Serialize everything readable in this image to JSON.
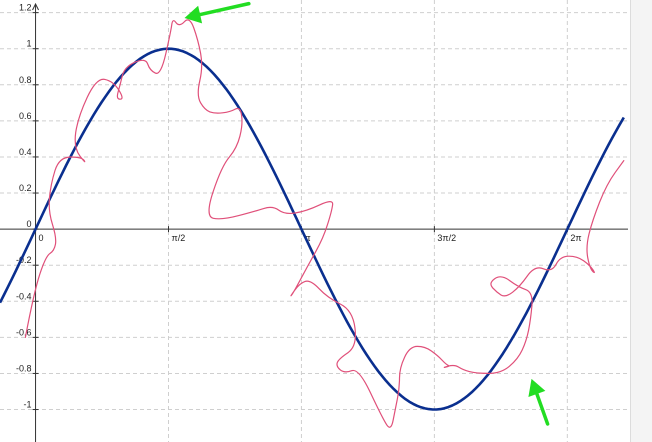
{
  "chart_data": {
    "type": "line",
    "title": "",
    "xlabel": "",
    "ylabel": "",
    "xlim": [
      -0.42,
      7.0
    ],
    "ylim": [
      -1.18,
      1.27
    ],
    "grid": true,
    "x_ticks": [
      {
        "value": 0,
        "label": "0"
      },
      {
        "value": 1.5708,
        "label": "π/2"
      },
      {
        "value": 3.1416,
        "label": "π"
      },
      {
        "value": 4.7124,
        "label": "3π/2"
      },
      {
        "value": 6.2832,
        "label": "2π"
      }
    ],
    "y_ticks": [
      {
        "value": 1.2,
        "label": "1.2"
      },
      {
        "value": 1,
        "label": "1"
      },
      {
        "value": 0.8,
        "label": "0.8"
      },
      {
        "value": 0.6,
        "label": "0.6"
      },
      {
        "value": 0.4,
        "label": "0.4"
      },
      {
        "value": 0.2,
        "label": "0.2"
      },
      {
        "value": 0,
        "label": "0"
      },
      {
        "value": -0.2,
        "label": "-0.2"
      },
      {
        "value": -0.4,
        "label": "-0.4"
      },
      {
        "value": -0.6,
        "label": "-0.6"
      },
      {
        "value": -0.8,
        "label": "-0.8"
      },
      {
        "value": -1,
        "label": "-1"
      }
    ],
    "series": [
      {
        "function": "sin",
        "color": "#0a2f8f",
        "x_range": [
          -0.42,
          6.95
        ],
        "samples": 160
      },
      {
        "style": "hand-drawn",
        "color": "#e0507a",
        "x": [
          -0.12,
          -0.02,
          0.12,
          0.22,
          0.25,
          0.15,
          0.18,
          0.28,
          0.55,
          0.6,
          0.45,
          0.5,
          0.72,
          0.92,
          1.05,
          0.95,
          1.0,
          1.05,
          1.3,
          1.35,
          1.48,
          1.6,
          1.62,
          1.7,
          1.82,
          1.92,
          1.98,
          1.9,
          2.0,
          2.12,
          2.3,
          2.42,
          2.45,
          2.38,
          2.2,
          2.0,
          2.2,
          2.6,
          2.8,
          2.95,
          3.2,
          3.52,
          3.5,
          3.4,
          3.22,
          3.05,
          3.0,
          3.12,
          3.25,
          3.45,
          3.75,
          3.8,
          3.58,
          3.55,
          3.65,
          3.82,
          4.1,
          4.2,
          4.25,
          4.3,
          4.3,
          4.42,
          4.6,
          4.75,
          4.85,
          4.9,
          4.8,
          4.95,
          5.05,
          5.2,
          5.5,
          5.7,
          5.8,
          5.85,
          5.88,
          5.7,
          5.5,
          5.35,
          5.45,
          5.55,
          5.72,
          5.9,
          6.1,
          6.2,
          6.4,
          6.55,
          6.62,
          6.55,
          6.5,
          6.58,
          6.75,
          6.95
        ],
        "y": [
          -0.6,
          -0.35,
          -0.15,
          -0.12,
          -0.05,
          0.1,
          0.25,
          0.4,
          0.4,
          0.36,
          0.45,
          0.62,
          0.84,
          0.82,
          0.72,
          0.72,
          0.8,
          0.9,
          0.95,
          0.88,
          0.85,
          1.1,
          1.17,
          1.12,
          1.18,
          1.05,
          0.9,
          0.74,
          0.66,
          0.64,
          0.65,
          0.68,
          0.58,
          0.45,
          0.35,
          0.07,
          0.05,
          0.1,
          0.13,
          0.08,
          0.1,
          0.17,
          0.1,
          -0.05,
          -0.2,
          -0.35,
          -0.38,
          -0.3,
          -0.28,
          -0.38,
          -0.45,
          -0.65,
          -0.72,
          -0.76,
          -0.8,
          -0.77,
          -1.05,
          -1.12,
          -1.0,
          -0.88,
          -0.77,
          -0.65,
          -0.65,
          -0.7,
          -0.75,
          -0.76,
          -0.77,
          -0.75,
          -0.78,
          -0.8,
          -0.8,
          -0.72,
          -0.62,
          -0.5,
          -0.35,
          -0.32,
          -0.25,
          -0.3,
          -0.35,
          -0.38,
          -0.32,
          -0.2,
          -0.24,
          -0.15,
          -0.15,
          -0.2,
          -0.25,
          -0.22,
          -0.1,
          0.05,
          0.25,
          0.38
        ]
      }
    ],
    "annotations": [
      {
        "type": "arrow",
        "color": "#22dd22",
        "tip": [
          1.76,
          1.17
        ],
        "tail": [
          2.52,
          1.25
        ]
      },
      {
        "type": "arrow",
        "color": "#22dd22",
        "tip": [
          5.86,
          -0.83
        ],
        "tail": [
          6.05,
          -1.08
        ]
      }
    ]
  }
}
